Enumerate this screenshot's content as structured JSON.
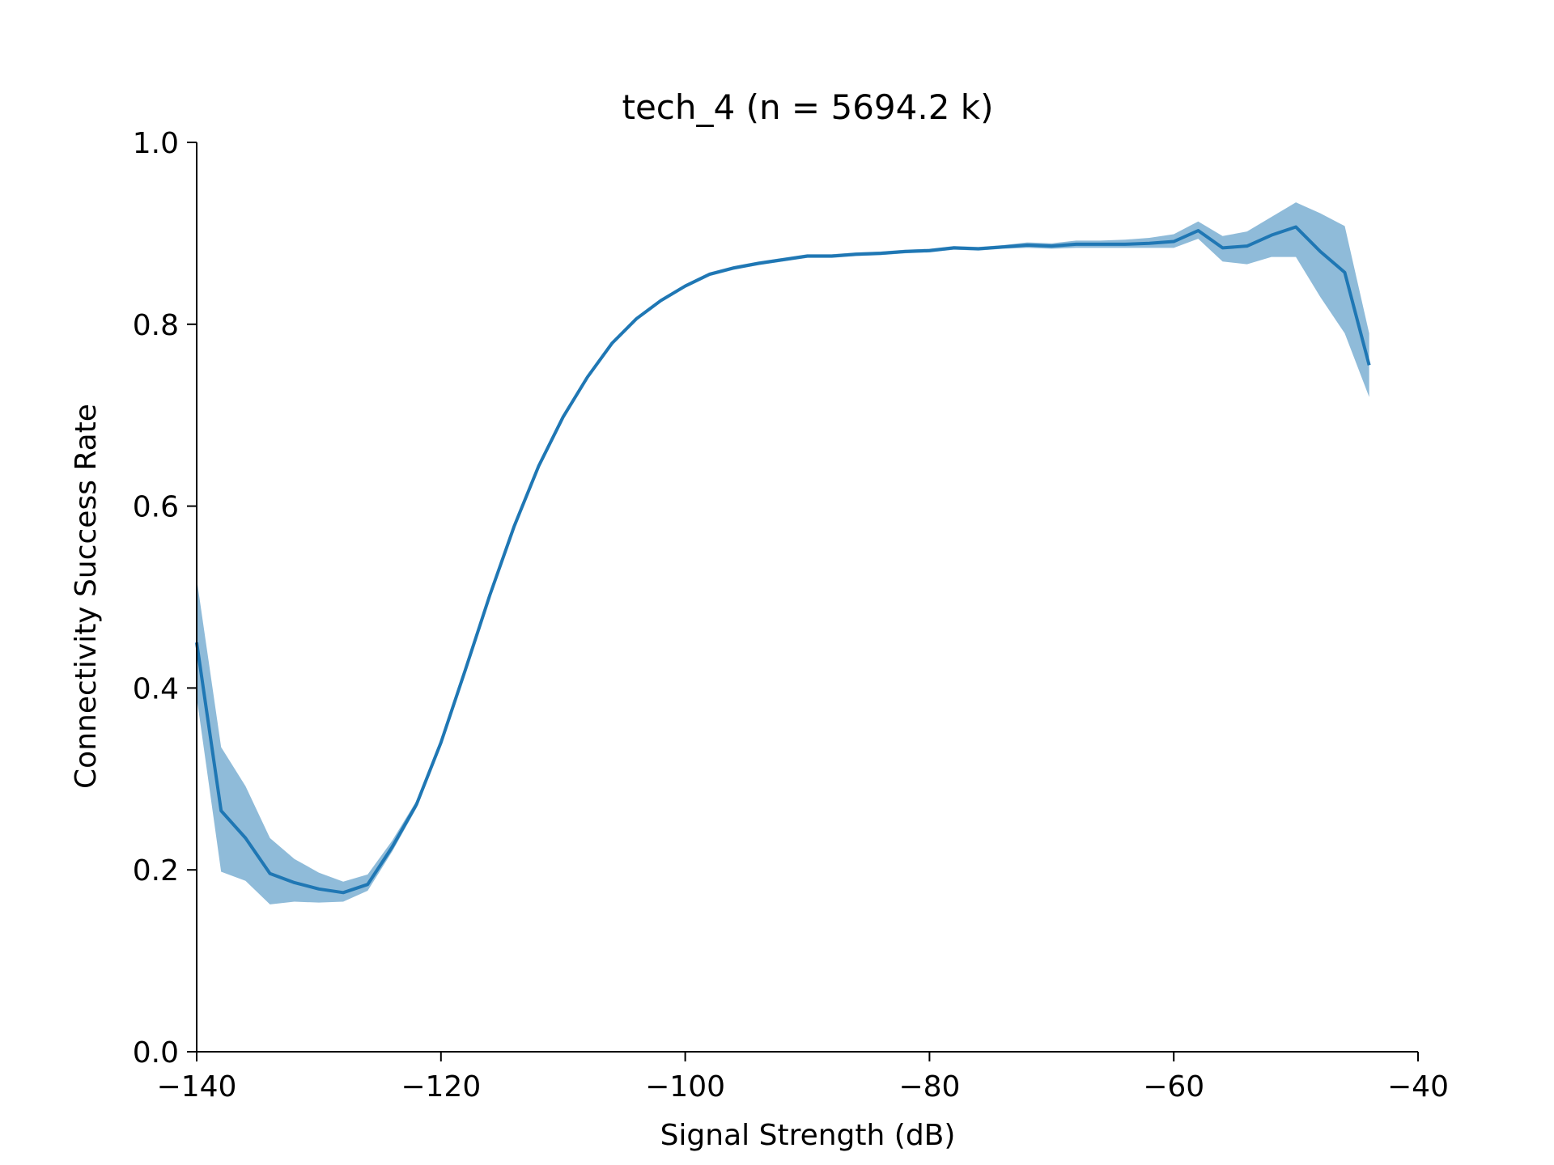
{
  "chart_data": {
    "type": "line",
    "title": "tech_4 (n = 5694.2 k)",
    "xlabel": "Signal Strength (dB)",
    "ylabel": "Connectivity Success Rate",
    "xlim": [
      -140,
      -40
    ],
    "ylim": [
      0.0,
      1.0
    ],
    "xticks": [
      -140,
      -120,
      -100,
      -80,
      -60,
      -40
    ],
    "xtick_labels": [
      "−140",
      "−120",
      "−100",
      "−80",
      "−60",
      "−40"
    ],
    "yticks": [
      0.0,
      0.2,
      0.4,
      0.6,
      0.8,
      1.0
    ],
    "ytick_labels": [
      "0.0",
      "0.2",
      "0.4",
      "0.6",
      "0.8",
      "1.0"
    ],
    "grid": false,
    "line_color": "#1f77b4",
    "band_color": "#1f77b4",
    "series": [
      {
        "x": [
          -140,
          -138,
          -136,
          -134,
          -132,
          -130,
          -128,
          -126,
          -124,
          -122,
          -120,
          -118,
          -116,
          -114,
          -112,
          -110,
          -108,
          -106,
          -104,
          -102,
          -100,
          -98,
          -96,
          -94,
          -92,
          -90,
          -88,
          -86,
          -84,
          -82,
          -80,
          -78,
          -76,
          -74,
          -72,
          -70,
          -68,
          -66,
          -64,
          -62,
          -60,
          -58,
          -56,
          -54,
          -52,
          -50,
          -48,
          -46,
          -44
        ],
        "y": [
          0.45,
          0.265,
          0.235,
          0.196,
          0.186,
          0.179,
          0.175,
          0.184,
          0.225,
          0.272,
          0.34,
          0.42,
          0.502,
          0.578,
          0.644,
          0.698,
          0.742,
          0.779,
          0.806,
          0.826,
          0.842,
          0.855,
          0.862,
          0.867,
          0.871,
          0.875,
          0.875,
          0.877,
          0.878,
          0.88,
          0.881,
          0.884,
          0.883,
          0.885,
          0.887,
          0.886,
          0.888,
          0.888,
          0.888,
          0.889,
          0.891,
          0.903,
          0.884,
          0.886,
          0.898,
          0.907,
          0.88,
          0.857,
          0.755
        ],
        "lower": [
          0.39,
          0.198,
          0.188,
          0.162,
          0.165,
          0.164,
          0.165,
          0.177,
          0.22,
          0.268,
          0.337,
          0.417,
          0.5,
          0.576,
          0.642,
          0.696,
          0.74,
          0.777,
          0.804,
          0.824,
          0.84,
          0.853,
          0.86,
          0.865,
          0.869,
          0.873,
          0.873,
          0.875,
          0.876,
          0.878,
          0.879,
          0.882,
          0.881,
          0.883,
          0.884,
          0.883,
          0.884,
          0.884,
          0.884,
          0.884,
          0.884,
          0.894,
          0.869,
          0.866,
          0.874,
          0.874,
          0.83,
          0.79,
          0.72
        ],
        "upper": [
          0.52,
          0.335,
          0.292,
          0.235,
          0.212,
          0.197,
          0.187,
          0.195,
          0.232,
          0.276,
          0.343,
          0.423,
          0.504,
          0.58,
          0.646,
          0.7,
          0.744,
          0.781,
          0.808,
          0.828,
          0.844,
          0.857,
          0.864,
          0.869,
          0.873,
          0.877,
          0.877,
          0.879,
          0.88,
          0.882,
          0.883,
          0.886,
          0.885,
          0.887,
          0.89,
          0.889,
          0.892,
          0.892,
          0.893,
          0.895,
          0.899,
          0.913,
          0.897,
          0.902,
          0.918,
          0.934,
          0.922,
          0.908,
          0.79
        ]
      }
    ]
  }
}
